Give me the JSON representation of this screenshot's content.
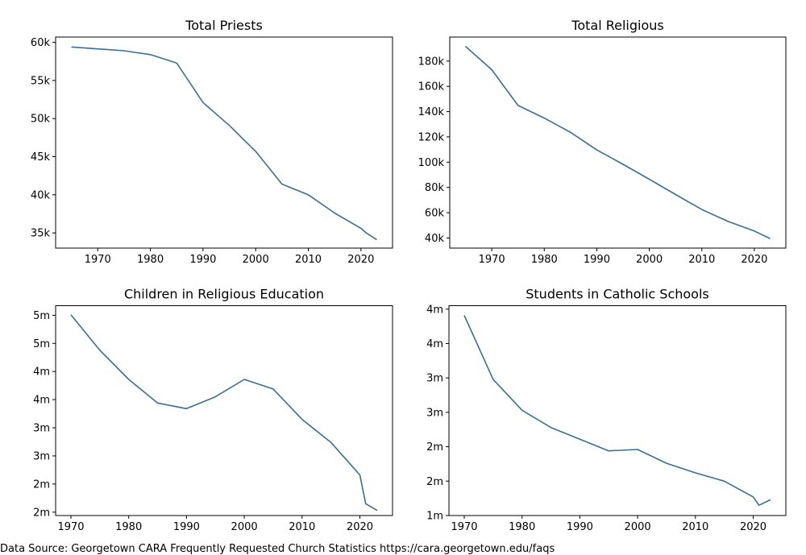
{
  "line_color": "#3a6f94",
  "footer": "Data Source: Georgetown CARA Frequently Requested Church Statistics https://cara.georgetown.edu/faqs",
  "chart_data": [
    {
      "type": "line",
      "title": "Total Priests",
      "xlabel": "",
      "ylabel": "",
      "xlim": [
        1962,
        2026
      ],
      "ylim": [
        33000,
        60700
      ],
      "x_ticks": [
        1970,
        1980,
        1990,
        2000,
        2010,
        2020
      ],
      "x_tick_labels": [
        "1970",
        "1980",
        "1990",
        "2000",
        "2010",
        "2020"
      ],
      "y_ticks": [
        60000,
        55000,
        50000,
        45000,
        40000,
        35000
      ],
      "y_tick_labels": [
        "60k",
        "55k",
        "50k",
        "45k",
        "40k",
        "35k"
      ],
      "grid": false,
      "x": [
        1965,
        1975,
        1980,
        1985,
        1990,
        1995,
        2000,
        2005,
        2010,
        2015,
        2020,
        2021,
        2023
      ],
      "values": [
        59400,
        58900,
        58400,
        57300,
        52100,
        49100,
        45700,
        41400,
        40000,
        37600,
        35600,
        35000,
        34100
      ]
    },
    {
      "type": "line",
      "title": "Total Religious",
      "xlabel": "",
      "ylabel": "",
      "xlim": [
        1962,
        2026
      ],
      "ylim": [
        32000,
        199000
      ],
      "x_ticks": [
        1970,
        1980,
        1990,
        2000,
        2010,
        2020
      ],
      "x_tick_labels": [
        "1970",
        "1980",
        "1990",
        "2000",
        "2010",
        "2020"
      ],
      "y_ticks": [
        180000,
        160000,
        140000,
        120000,
        100000,
        80000,
        60000,
        40000
      ],
      "y_tick_labels": [
        "180k",
        "160k",
        "140k",
        "120k",
        "100k",
        "80k",
        "60k",
        "40k"
      ],
      "grid": false,
      "x": [
        1965,
        1970,
        1975,
        1980,
        1985,
        1990,
        1995,
        2000,
        2005,
        2010,
        2015,
        2020,
        2023
      ],
      "values": [
        191700,
        173200,
        144900,
        134900,
        123600,
        109700,
        98300,
        86500,
        74400,
        62500,
        53100,
        45500,
        39600
      ]
    },
    {
      "type": "line",
      "title": "Children in Religious Education",
      "xlabel": "",
      "ylabel": "",
      "xlim": [
        1967.35,
        2025.65
      ],
      "ylim": [
        1440000,
        5170000
      ],
      "x_ticks": [
        1970,
        1980,
        1990,
        2000,
        2010,
        2020
      ],
      "x_tick_labels": [
        "1970",
        "1980",
        "1990",
        "2000",
        "2010",
        "2020"
      ],
      "y_ticks": [
        5000000,
        4500000,
        4000000,
        3500000,
        3000000,
        2500000,
        2000000,
        1500000
      ],
      "y_tick_labels": [
        "5m",
        "5m",
        "4m",
        "4m",
        "3m",
        "3m",
        "2m",
        "2m"
      ],
      "grid": false,
      "x": [
        1970,
        1975,
        1980,
        1985,
        1990,
        1995,
        2000,
        2005,
        2010,
        2015,
        2020,
        2021,
        2023
      ],
      "values": [
        5010000,
        4380000,
        3860000,
        3440000,
        3340000,
        3550000,
        3860000,
        3690000,
        3150000,
        2740000,
        2160000,
        1650000,
        1530000
      ]
    },
    {
      "type": "line",
      "title": "Students in Catholic Schools",
      "xlabel": "",
      "ylabel": "",
      "xlim": [
        1967.35,
        2025.65
      ],
      "ylim": [
        1000000,
        4050000
      ],
      "x_ticks": [
        1970,
        1980,
        1990,
        2000,
        2010,
        2020
      ],
      "x_tick_labels": [
        "1970",
        "1980",
        "1990",
        "2000",
        "2010",
        "2020"
      ],
      "y_ticks": [
        4000000,
        3500000,
        3000000,
        2500000,
        2000000,
        1500000,
        1000000
      ],
      "y_tick_labels": [
        "4m",
        "4m",
        "3m",
        "3m",
        "2m",
        "2m",
        "1m"
      ],
      "grid": false,
      "x": [
        1970,
        1975,
        1980,
        1985,
        1990,
        1995,
        2000,
        2005,
        2010,
        2015,
        2020,
        2021,
        2023
      ],
      "values": [
        3910000,
        2980000,
        2530000,
        2280000,
        2110000,
        1940000,
        1960000,
        1760000,
        1620000,
        1500000,
        1270000,
        1150000,
        1230000
      ]
    }
  ]
}
